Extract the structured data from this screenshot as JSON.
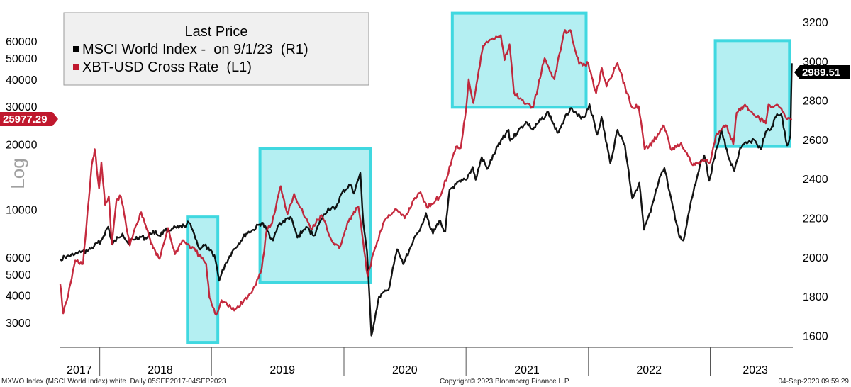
{
  "chart_data": {
    "type": "line",
    "x_start": "2017-09-05",
    "x_end": "2023-09-04",
    "legend": {
      "title": "Last Price",
      "entries": [
        {
          "label": "MSCI World Index -  on 9/1/23  (R1)",
          "color": "#000000"
        },
        {
          "label": "XBT-USD Cross Rate  (L1)",
          "color": "#c0182e"
        }
      ],
      "placement": "top-left"
    },
    "scale_label": "Log",
    "left_axis": {
      "scale": "log",
      "range": [
        2300,
        80000
      ],
      "ticks": [
        3000,
        4000,
        5000,
        6000,
        10000,
        20000,
        30000,
        40000,
        50000,
        60000
      ],
      "tick_labels": [
        "3000",
        "4000",
        "5000",
        "6000",
        "10000",
        "20000",
        "30000",
        "40000",
        "50000",
        "60000"
      ]
    },
    "right_axis": {
      "scale": "linear",
      "range": [
        1540,
        3240
      ],
      "ticks": [
        1600,
        1800,
        2000,
        2200,
        2400,
        2600,
        2800,
        3000,
        3200
      ],
      "tick_labels": [
        "1600",
        "1800",
        "2000",
        "2200",
        "2400",
        "2600",
        "2800",
        "3000",
        "3200"
      ]
    },
    "x_axis": {
      "year_labels": [
        "2017",
        "2018",
        "2019",
        "2020",
        "2021",
        "2022",
        "2023"
      ],
      "year_label_dates": [
        "2017-11-01",
        "2018-07-01",
        "2019-07-01",
        "2020-07-01",
        "2021-07-01",
        "2022-07-01",
        "2023-05-15"
      ],
      "separators": [
        "2018-01-01",
        "2018-12-01",
        "2020-01-01",
        "2020-12-31",
        "2022-01-01",
        "2022-12-31"
      ]
    },
    "last_values": {
      "msci": "2989.51",
      "xbt": "25977.29"
    },
    "grid": false,
    "highlight_boxes": [
      {
        "x0": "2018-09-20",
        "x1": "2018-12-20",
        "y0_right": 1565,
        "y1_right": 2205
      },
      {
        "x0": "2019-04-25",
        "x1": "2020-03-20",
        "y0_right": 1870,
        "y1_right": 2555
      },
      {
        "x0": "2020-11-20",
        "x1": "2021-12-25",
        "y0_right": 2765,
        "y1_right": 3245
      },
      {
        "x0": "2023-01-15",
        "x1": "2023-08-25",
        "y0_right": 2565,
        "y1_right": 3105
      }
    ],
    "series": [
      {
        "name": "MSCI World Index -  on 9/1/23  (R1)",
        "axis": "right",
        "color": "#000000",
        "points": [
          [
            "2017-09-05",
            1990
          ],
          [
            "2017-09-25",
            2005
          ],
          [
            "2017-10-15",
            2010
          ],
          [
            "2017-11-05",
            2025
          ],
          [
            "2017-11-25",
            2030
          ],
          [
            "2017-12-15",
            2055
          ],
          [
            "2018-01-05",
            2085
          ],
          [
            "2018-01-26",
            2155
          ],
          [
            "2018-02-08",
            2065
          ],
          [
            "2018-02-25",
            2100
          ],
          [
            "2018-03-10",
            2120
          ],
          [
            "2018-03-25",
            2075
          ],
          [
            "2018-04-10",
            2090
          ],
          [
            "2018-05-01",
            2105
          ],
          [
            "2018-05-20",
            2095
          ],
          [
            "2018-06-10",
            2135
          ],
          [
            "2018-06-28",
            2110
          ],
          [
            "2018-07-15",
            2135
          ],
          [
            "2018-08-05",
            2145
          ],
          [
            "2018-08-25",
            2150
          ],
          [
            "2018-09-10",
            2160
          ],
          [
            "2018-09-25",
            2175
          ],
          [
            "2018-10-10",
            2120
          ],
          [
            "2018-10-25",
            2045
          ],
          [
            "2018-11-10",
            2060
          ],
          [
            "2018-11-25",
            2035
          ],
          [
            "2018-12-10",
            2010
          ],
          [
            "2018-12-24",
            1880
          ],
          [
            "2019-01-10",
            1960
          ],
          [
            "2019-01-31",
            2025
          ],
          [
            "2019-02-20",
            2070
          ],
          [
            "2019-03-15",
            2120
          ],
          [
            "2019-04-05",
            2140
          ],
          [
            "2019-04-30",
            2175
          ],
          [
            "2019-05-15",
            2140
          ],
          [
            "2019-06-03",
            2085
          ],
          [
            "2019-06-20",
            2165
          ],
          [
            "2019-07-25",
            2205
          ],
          [
            "2019-08-15",
            2100
          ],
          [
            "2019-09-10",
            2155
          ],
          [
            "2019-10-03",
            2110
          ],
          [
            "2019-10-25",
            2190
          ],
          [
            "2019-11-15",
            2250
          ],
          [
            "2019-12-05",
            2245
          ],
          [
            "2019-12-27",
            2330
          ],
          [
            "2020-01-20",
            2370
          ],
          [
            "2020-01-31",
            2325
          ],
          [
            "2020-02-19",
            2430
          ],
          [
            "2020-02-28",
            2170
          ],
          [
            "2020-03-10",
            2030
          ],
          [
            "2020-03-23",
            1600
          ],
          [
            "2020-04-15",
            1800
          ],
          [
            "2020-05-13",
            1830
          ],
          [
            "2020-06-08",
            2040
          ],
          [
            "2020-06-26",
            1965
          ],
          [
            "2020-07-21",
            2060
          ],
          [
            "2020-08-20",
            2165
          ],
          [
            "2020-09-02",
            2225
          ],
          [
            "2020-09-23",
            2120
          ],
          [
            "2020-10-12",
            2185
          ],
          [
            "2020-10-30",
            2130
          ],
          [
            "2020-11-12",
            2345
          ],
          [
            "2020-12-15",
            2385
          ],
          [
            "2020-12-31",
            2395
          ],
          [
            "2021-01-20",
            2460
          ],
          [
            "2021-01-29",
            2395
          ],
          [
            "2021-02-16",
            2510
          ],
          [
            "2021-03-04",
            2450
          ],
          [
            "2021-03-25",
            2525
          ],
          [
            "2021-04-15",
            2600
          ],
          [
            "2021-05-07",
            2650
          ],
          [
            "2021-05-12",
            2595
          ],
          [
            "2021-06-04",
            2640
          ],
          [
            "2021-06-28",
            2690
          ],
          [
            "2021-07-19",
            2650
          ],
          [
            "2021-08-12",
            2700
          ],
          [
            "2021-09-03",
            2740
          ],
          [
            "2021-09-30",
            2635
          ],
          [
            "2021-10-21",
            2705
          ],
          [
            "2021-11-08",
            2760
          ],
          [
            "2021-11-30",
            2720
          ],
          [
            "2021-12-20",
            2715
          ],
          [
            "2022-01-04",
            2780
          ],
          [
            "2022-01-27",
            2625
          ],
          [
            "2022-02-09",
            2715
          ],
          [
            "2022-03-07",
            2480
          ],
          [
            "2022-03-29",
            2650
          ],
          [
            "2022-04-20",
            2570
          ],
          [
            "2022-05-12",
            2300
          ],
          [
            "2022-06-02",
            2380
          ],
          [
            "2022-06-16",
            2140
          ],
          [
            "2022-07-06",
            2230
          ],
          [
            "2022-07-29",
            2380
          ],
          [
            "2022-08-16",
            2455
          ],
          [
            "2022-09-01",
            2330
          ],
          [
            "2022-09-30",
            2100
          ],
          [
            "2022-10-12",
            2085
          ],
          [
            "2022-11-04",
            2290
          ],
          [
            "2022-11-30",
            2470
          ],
          [
            "2022-12-13",
            2520
          ],
          [
            "2022-12-28",
            2390
          ],
          [
            "2023-01-20",
            2560
          ],
          [
            "2023-02-02",
            2650
          ],
          [
            "2023-02-22",
            2520
          ],
          [
            "2023-03-13",
            2440
          ],
          [
            "2023-03-31",
            2560
          ],
          [
            "2023-04-20",
            2580
          ],
          [
            "2023-05-10",
            2600
          ],
          [
            "2023-05-31",
            2550
          ],
          [
            "2023-06-15",
            2640
          ],
          [
            "2023-06-30",
            2650
          ],
          [
            "2023-07-19",
            2730
          ],
          [
            "2023-07-31",
            2730
          ],
          [
            "2023-08-18",
            2570
          ],
          [
            "2023-08-28",
            2620
          ],
          [
            "2023-09-01",
            2989.51
          ]
        ]
      },
      {
        "name": "XBT-USD Cross Rate  (L1)",
        "axis": "left",
        "color": "#c0182e",
        "points": [
          [
            "2017-09-05",
            4500
          ],
          [
            "2017-09-14",
            3300
          ],
          [
            "2017-09-25",
            3800
          ],
          [
            "2017-10-20",
            5800
          ],
          [
            "2017-11-12",
            5600
          ],
          [
            "2017-11-29",
            11000
          ],
          [
            "2017-12-08",
            16000
          ],
          [
            "2017-12-17",
            19000
          ],
          [
            "2017-12-30",
            12500
          ],
          [
            "2018-01-06",
            16500
          ],
          [
            "2018-01-17",
            10500
          ],
          [
            "2018-01-28",
            11500
          ],
          [
            "2018-02-06",
            6900
          ],
          [
            "2018-02-20",
            11000
          ],
          [
            "2018-03-05",
            11500
          ],
          [
            "2018-04-01",
            6800
          ],
          [
            "2018-04-15",
            8100
          ],
          [
            "2018-05-05",
            9700
          ],
          [
            "2018-06-10",
            6600
          ],
          [
            "2018-06-29",
            5900
          ],
          [
            "2018-07-24",
            8200
          ],
          [
            "2018-08-14",
            6200
          ],
          [
            "2018-09-05",
            7200
          ],
          [
            "2018-10-15",
            6400
          ],
          [
            "2018-11-15",
            5600
          ],
          [
            "2018-11-25",
            3900
          ],
          [
            "2018-12-15",
            3250
          ],
          [
            "2018-12-31",
            3800
          ],
          [
            "2019-02-07",
            3400
          ],
          [
            "2019-03-31",
            4100
          ],
          [
            "2019-04-30",
            5300
          ],
          [
            "2019-05-15",
            8000
          ],
          [
            "2019-05-31",
            8600
          ],
          [
            "2019-06-26",
            12800
          ],
          [
            "2019-07-16",
            9500
          ],
          [
            "2019-08-05",
            11800
          ],
          [
            "2019-09-01",
            9600
          ],
          [
            "2019-09-25",
            8100
          ],
          [
            "2019-10-26",
            9400
          ],
          [
            "2019-11-25",
            7200
          ],
          [
            "2019-12-18",
            6600
          ],
          [
            "2020-01-15",
            8800
          ],
          [
            "2020-02-13",
            10300
          ],
          [
            "2020-03-12",
            4900
          ],
          [
            "2020-03-31",
            6400
          ],
          [
            "2020-04-30",
            8800
          ],
          [
            "2020-06-01",
            10000
          ],
          [
            "2020-07-01",
            9100
          ],
          [
            "2020-07-31",
            11300
          ],
          [
            "2020-08-17",
            12000
          ],
          [
            "2020-09-05",
            10200
          ],
          [
            "2020-10-15",
            11500
          ],
          [
            "2020-11-15",
            16000
          ],
          [
            "2020-12-01",
            19500
          ],
          [
            "2020-12-15",
            19200
          ],
          [
            "2020-12-31",
            29000
          ],
          [
            "2021-01-08",
            40000
          ],
          [
            "2021-01-22",
            31000
          ],
          [
            "2021-02-20",
            57000
          ],
          [
            "2021-03-13",
            61000
          ],
          [
            "2021-04-14",
            64000
          ],
          [
            "2021-04-25",
            49000
          ],
          [
            "2021-05-10",
            58000
          ],
          [
            "2021-05-23",
            35000
          ],
          [
            "2021-06-22",
            31000
          ],
          [
            "2021-07-20",
            29800
          ],
          [
            "2021-08-23",
            50000
          ],
          [
            "2021-09-21",
            40000
          ],
          [
            "2021-10-20",
            66000
          ],
          [
            "2021-11-08",
            67500
          ],
          [
            "2021-12-04",
            47000
          ],
          [
            "2022-01-01",
            47000
          ],
          [
            "2022-01-24",
            34500
          ],
          [
            "2022-02-10",
            45000
          ],
          [
            "2022-02-24",
            37000
          ],
          [
            "2022-03-29",
            47500
          ],
          [
            "2022-05-09",
            30000
          ],
          [
            "2022-05-31",
            30000
          ],
          [
            "2022-06-18",
            19000
          ],
          [
            "2022-07-01",
            19500
          ],
          [
            "2022-08-15",
            24300
          ],
          [
            "2022-09-07",
            18800
          ],
          [
            "2022-10-05",
            20300
          ],
          [
            "2022-11-09",
            16000
          ],
          [
            "2022-12-15",
            16800
          ],
          [
            "2022-12-31",
            16500
          ],
          [
            "2023-01-20",
            22500
          ],
          [
            "2023-02-16",
            24500
          ],
          [
            "2023-03-10",
            20000
          ],
          [
            "2023-03-20",
            28000
          ],
          [
            "2023-04-14",
            30500
          ],
          [
            "2023-05-10",
            27500
          ],
          [
            "2023-06-15",
            25000
          ],
          [
            "2023-06-23",
            30500
          ],
          [
            "2023-07-15",
            30300
          ],
          [
            "2023-08-01",
            29200
          ],
          [
            "2023-08-17",
            26000
          ],
          [
            "2023-09-01",
            25977.29
          ]
        ]
      }
    ]
  },
  "footer": {
    "left": "MXWO Index (MSCI World Index) white  Daily 05SEP2017-04SEP2023",
    "center": "Copyright© 2023 Bloomberg Finance L.P.",
    "right": "04-Sep-2023 09:59:29"
  },
  "colors": {
    "msci_line": "#000000",
    "xbt_line": "#c0182e",
    "highlight_fill": "#9be9ee",
    "highlight_stroke": "#40d8e0",
    "legend_bg": "#f0f0f0"
  }
}
